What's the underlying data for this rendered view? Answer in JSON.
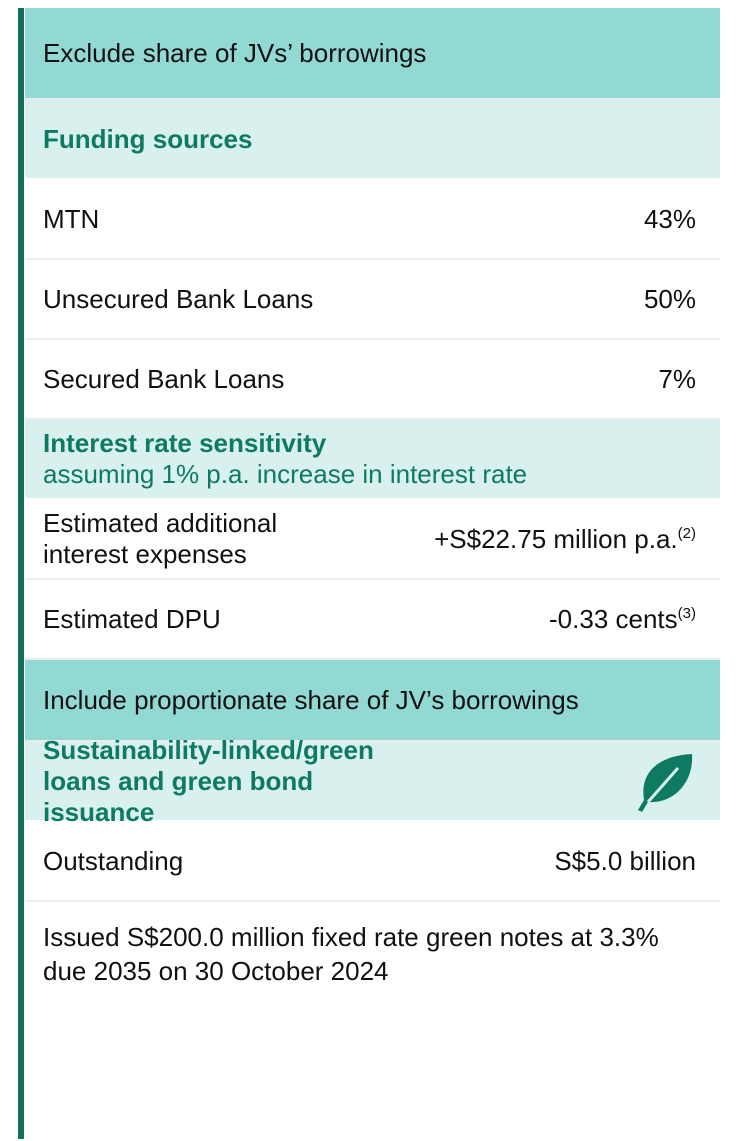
{
  "sections": [
    {
      "header": "Exclude share of JVs’ borrowings",
      "groups": [
        {
          "title": "Funding sources",
          "rows": [
            {
              "label": "MTN",
              "value": "43%"
            },
            {
              "label": "Unsecured Bank Loans",
              "value": "50%"
            },
            {
              "label": "Secured Bank Loans",
              "value": "7%"
            }
          ]
        },
        {
          "title": "Interest rate sensitivity",
          "subtitle": "assuming 1% p.a. increase in interest rate",
          "rows": [
            {
              "label": "Estimated additional interest expenses",
              "value": "+S$22.75 million p.a.",
              "note": "(2)"
            },
            {
              "label": "Estimated DPU",
              "value": "-0.33 cents",
              "note": "(3)"
            }
          ]
        }
      ]
    },
    {
      "header": "Include proportionate share of JV’s borrowings",
      "groups": [
        {
          "title": "Sustainability-linked/green loans and green bond issuance",
          "rows": [
            {
              "label": "Outstanding",
              "value": "S$5.0 billion"
            }
          ],
          "footnote": "Issued S$200.0 million fixed rate green notes at 3.3% due 2035 on 30 October 2024"
        }
      ]
    }
  ]
}
